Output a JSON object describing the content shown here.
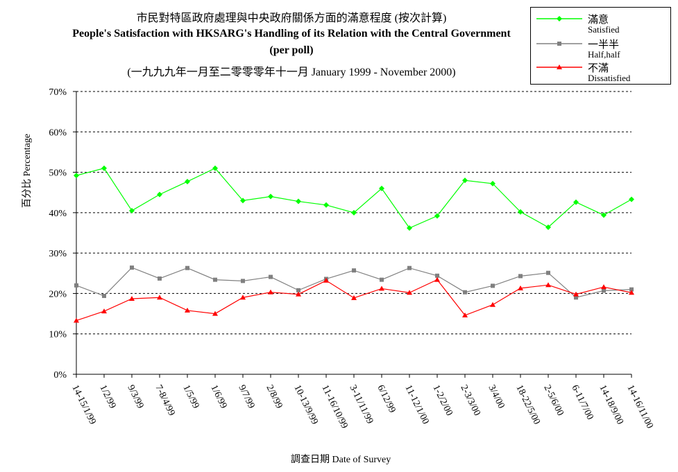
{
  "chart_data": {
    "type": "line",
    "title": "市民對特區政府處理與中央政府關係方面的滿意程度 (按次計算)",
    "subtitle": "People's Satisfaction with HKSARG's Handling of its Relation with the Central Government",
    "subtitle2": "(per poll)",
    "subtitle3": "(一九九九年一月至二零零零年十一月 January 1999 - November 2000)",
    "xlabel": "調查日期 Date of Survey",
    "ylabel": "百分比 Percentage",
    "ylim": [
      0,
      70
    ],
    "yticks": [
      "0%",
      "10%",
      "20%",
      "30%",
      "40%",
      "50%",
      "60%",
      "70%"
    ],
    "grid": "horizontal dashed",
    "legend_position": "top-right",
    "categories": [
      "14-15/1/99",
      "1/2/99",
      "9/3/99",
      "7-8/4/99",
      "1/5/99",
      "1/6/99",
      "9/7/99",
      "2/8/99",
      "10-13/9/99",
      "11-16/10/99",
      "3-11/11/99",
      "6/12/99",
      "11-12/1/00",
      "1-2/2/00",
      "2-3/3/00",
      "3/4/00",
      "18-22/5/00",
      "2-5/6/00",
      "6-11/7/00",
      "14-18/9/00",
      "14-16/11/00"
    ],
    "series": [
      {
        "name_zh": "滿意",
        "name": "Satisfied",
        "color": "#00ff00",
        "marker": "diamond",
        "values": [
          49.2,
          51.0,
          40.5,
          44.5,
          47.7,
          51.0,
          43.0,
          44.0,
          42.8,
          41.9,
          40.0,
          46.0,
          36.2,
          39.2,
          48.0,
          47.2,
          40.2,
          36.4,
          42.6,
          39.4,
          43.3
        ]
      },
      {
        "name_zh": "一半半",
        "name": "Half,half",
        "color": "#808080",
        "marker": "square",
        "values": [
          22.0,
          19.4,
          26.4,
          23.7,
          26.3,
          23.4,
          23.1,
          24.1,
          20.8,
          23.6,
          25.7,
          23.4,
          26.3,
          24.4,
          20.3,
          21.9,
          24.3,
          25.1,
          19.0,
          20.7,
          21.0
        ]
      },
      {
        "name_zh": "不滿",
        "name": "Dissatisfied",
        "color": "#ff0000",
        "marker": "triangle",
        "values": [
          13.3,
          15.6,
          18.7,
          19.0,
          15.8,
          15.0,
          19.0,
          20.3,
          19.8,
          23.2,
          18.9,
          21.2,
          20.2,
          23.4,
          14.6,
          17.2,
          21.3,
          22.1,
          19.8,
          21.6,
          20.2
        ]
      }
    ]
  }
}
